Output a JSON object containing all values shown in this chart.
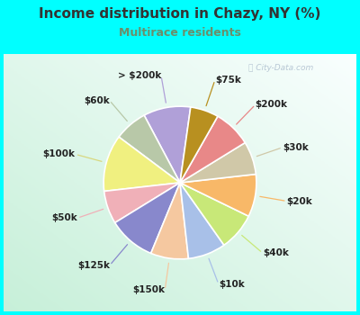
{
  "title": "Income distribution in Chazy, NY (%)",
  "subtitle": "Multirace residents",
  "title_color": "#333333",
  "subtitle_color": "#6b8e6b",
  "background_cyan": "#00ffff",
  "watermark": "City-Data.com",
  "labels": [
    "> $200k",
    "$60k",
    "$100k",
    "$50k",
    "$125k",
    "$150k",
    "$10k",
    "$40k",
    "$20k",
    "$30k",
    "$200k",
    "$75k"
  ],
  "values": [
    10,
    7,
    12,
    7,
    10,
    8,
    8,
    8,
    9,
    7,
    8,
    6
  ],
  "colors": [
    "#b0a0d8",
    "#b8c8a8",
    "#f0f080",
    "#f0b0b8",
    "#8888cc",
    "#f5c8a0",
    "#a8c0e8",
    "#c8e878",
    "#f8b868",
    "#d0c8a8",
    "#e88888",
    "#b89020"
  ],
  "line_colors": [
    "#b0a0d8",
    "#b8c8a8",
    "#d8d880",
    "#f0b0b8",
    "#8888cc",
    "#f5c8a0",
    "#a8c0e8",
    "#c8e878",
    "#f8b868",
    "#d0c8a8",
    "#e88888",
    "#b89020"
  ],
  "wedge_edge_color": "#ffffff",
  "wedge_linewidth": 1.2,
  "startangle": 82,
  "label_fontsize": 7.5,
  "label_fontweight": "bold"
}
